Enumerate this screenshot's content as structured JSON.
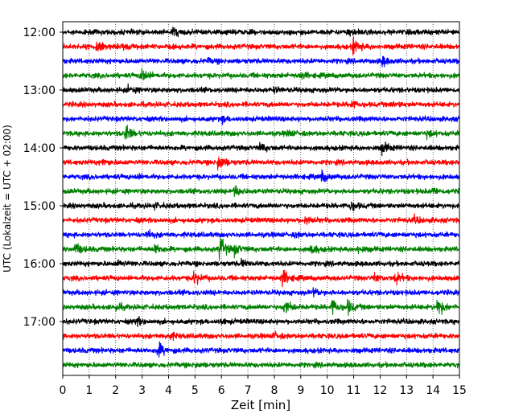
{
  "chart_data": {
    "type": "line",
    "title": "",
    "xlabel": "Zeit  [min]",
    "ylabel": "UTC (Lokalzeit = UTC + 02:00)",
    "xlim": [
      0,
      15
    ],
    "xticks": [
      0,
      1,
      2,
      3,
      4,
      5,
      6,
      7,
      8,
      9,
      10,
      11,
      12,
      13,
      14,
      15
    ],
    "x_grid": "dotted",
    "trace_interval_min": 15,
    "yticks": [
      {
        "label": "12:00",
        "trace": 0
      },
      {
        "label": "13:00",
        "trace": 4
      },
      {
        "label": "14:00",
        "trace": 8
      },
      {
        "label": "15:00",
        "trace": 12
      },
      {
        "label": "16:00",
        "trace": 16
      },
      {
        "label": "17:00",
        "trace": 20
      }
    ],
    "colors": [
      "#000000",
      "#ff0000",
      "#0000ff",
      "#008000"
    ],
    "traces": [
      {
        "start": "12:00",
        "events": [
          {
            "t": 4.2,
            "a": 0.5
          },
          {
            "t": 10.8,
            "a": 0.3
          }
        ]
      },
      {
        "start": "12:15",
        "events": [
          {
            "t": 1.3,
            "a": 0.9
          },
          {
            "t": 11.0,
            "a": 0.8
          },
          {
            "t": 2.3,
            "a": 0.3
          }
        ]
      },
      {
        "start": "12:30",
        "events": [
          {
            "t": 12.1,
            "a": 0.5
          },
          {
            "t": 5.5,
            "a": 0.2
          }
        ]
      },
      {
        "start": "12:45",
        "events": [
          {
            "t": 3.0,
            "a": 0.8
          },
          {
            "t": 9.0,
            "a": 0.3
          }
        ]
      },
      {
        "start": "13:00",
        "events": [
          {
            "t": 2.5,
            "a": 0.3
          },
          {
            "t": 8.0,
            "a": 0.2
          }
        ]
      },
      {
        "start": "13:15",
        "events": [
          {
            "t": 10.9,
            "a": 0.4
          },
          {
            "t": 12.5,
            "a": 0.3
          }
        ]
      },
      {
        "start": "13:30",
        "events": [
          {
            "t": 6.0,
            "a": 0.3
          }
        ]
      },
      {
        "start": "13:45",
        "events": [
          {
            "t": 2.4,
            "a": 0.9
          },
          {
            "t": 8.5,
            "a": 0.3
          },
          {
            "t": 13.8,
            "a": 0.3
          }
        ]
      },
      {
        "start": "14:00",
        "events": [
          {
            "t": 7.5,
            "a": 0.4
          },
          {
            "t": 12.1,
            "a": 0.6
          }
        ]
      },
      {
        "start": "14:15",
        "events": [
          {
            "t": 5.9,
            "a": 0.9
          },
          {
            "t": 1.5,
            "a": 0.3
          }
        ]
      },
      {
        "start": "14:30",
        "events": [
          {
            "t": 9.8,
            "a": 0.6
          },
          {
            "t": 2.8,
            "a": 0.2
          }
        ]
      },
      {
        "start": "14:45",
        "events": [
          {
            "t": 6.5,
            "a": 0.6
          },
          {
            "t": 14.0,
            "a": 0.3
          }
        ]
      },
      {
        "start": "15:00",
        "events": [
          {
            "t": 10.9,
            "a": 0.5
          },
          {
            "t": 3.5,
            "a": 0.2
          }
        ]
      },
      {
        "start": "15:15",
        "events": [
          {
            "t": 9.2,
            "a": 0.4
          },
          {
            "t": 13.3,
            "a": 0.3
          }
        ]
      },
      {
        "start": "15:30",
        "events": [
          {
            "t": 3.2,
            "a": 0.4
          },
          {
            "t": 8.8,
            "a": 0.2
          }
        ]
      },
      {
        "start": "15:45",
        "events": [
          {
            "t": 5.95,
            "a": 1.4
          },
          {
            "t": 0.5,
            "a": 0.6
          },
          {
            "t": 3.5,
            "a": 0.5
          },
          {
            "t": 6.5,
            "a": 0.5
          },
          {
            "t": 9.4,
            "a": 0.5
          },
          {
            "t": 11.2,
            "a": 0.3
          }
        ]
      },
      {
        "start": "16:00",
        "events": [
          {
            "t": 2.1,
            "a": 0.3
          },
          {
            "t": 6.8,
            "a": 0.3
          }
        ]
      },
      {
        "start": "16:15",
        "events": [
          {
            "t": 5.0,
            "a": 0.7
          },
          {
            "t": 8.3,
            "a": 1.0
          },
          {
            "t": 12.6,
            "a": 0.6
          },
          {
            "t": 11.8,
            "a": 0.4
          }
        ]
      },
      {
        "start": "16:30",
        "events": [
          {
            "t": 9.5,
            "a": 0.3
          }
        ]
      },
      {
        "start": "16:45",
        "events": [
          {
            "t": 8.4,
            "a": 0.8
          },
          {
            "t": 10.2,
            "a": 0.8
          },
          {
            "t": 10.8,
            "a": 0.7
          },
          {
            "t": 14.2,
            "a": 1.0
          },
          {
            "t": 2.0,
            "a": 0.4
          }
        ]
      },
      {
        "start": "17:00",
        "events": [
          {
            "t": 2.8,
            "a": 0.4
          },
          {
            "t": 6.0,
            "a": 0.2
          }
        ]
      },
      {
        "start": "17:15",
        "events": [
          {
            "t": 4.0,
            "a": 0.4
          },
          {
            "t": 8.0,
            "a": 0.3
          }
        ]
      },
      {
        "start": "17:30",
        "events": [
          {
            "t": 3.6,
            "a": 0.9
          }
        ]
      },
      {
        "start": "17:45",
        "events": [
          {
            "t": 5.0,
            "a": 0.2
          }
        ]
      }
    ]
  }
}
